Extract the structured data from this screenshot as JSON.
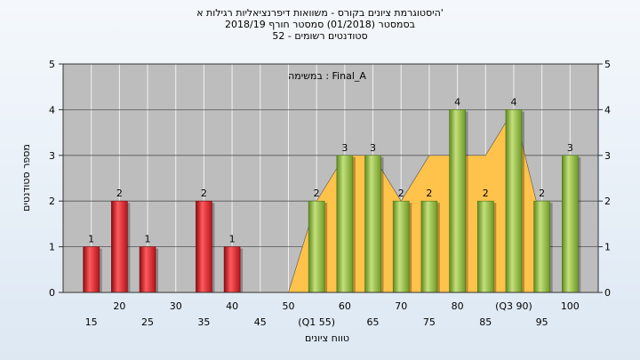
{
  "header": {
    "line1": "היסטוגרמת ציונים בקורס - משוואות דיפרנציאליות רגילות א'",
    "line2": "בסמסטר  (01/2018)  סמסטר חורף 2018/19",
    "line3": "סטודנטים רשומים - 52"
  },
  "colors": {
    "plot_bg": "#bdbdbd",
    "failing_bar": "#e0262b",
    "passing_bar": "#8db83f",
    "area_fill": "#ffc24a"
  },
  "chart_data": {
    "type": "bar",
    "subtitle": "במשימה : Final_A",
    "xlabel": "טווח ציונים",
    "ylabel": "מספר סטודנטים",
    "ylim": [
      0,
      5
    ],
    "yticks": [
      0,
      1,
      2,
      3,
      4,
      5
    ],
    "grid": true,
    "x_tick_labels": {
      "upper": [
        "20",
        "30",
        "40",
        "50",
        "60",
        "70",
        "80",
        "(Q3 90)",
        "100"
      ],
      "lower": [
        "15",
        "25",
        "35",
        "45",
        "(Q1 55)",
        "65",
        "75",
        "85",
        "95"
      ]
    },
    "categories": [
      "15",
      "20",
      "25",
      "30",
      "35",
      "40",
      "45",
      "50",
      "55",
      "60",
      "65",
      "70",
      "75",
      "80",
      "85",
      "90",
      "95",
      "100"
    ],
    "values": [
      1,
      2,
      1,
      0,
      2,
      1,
      0,
      0,
      2,
      3,
      3,
      2,
      2,
      4,
      2,
      4,
      2,
      3
    ],
    "pass_threshold": 55,
    "area_series": {
      "x": [
        50,
        55,
        60,
        65,
        70,
        75,
        80,
        85,
        90,
        95
      ],
      "values": [
        0,
        2,
        3,
        3,
        2,
        3,
        3,
        3,
        4,
        1.5
      ]
    }
  }
}
